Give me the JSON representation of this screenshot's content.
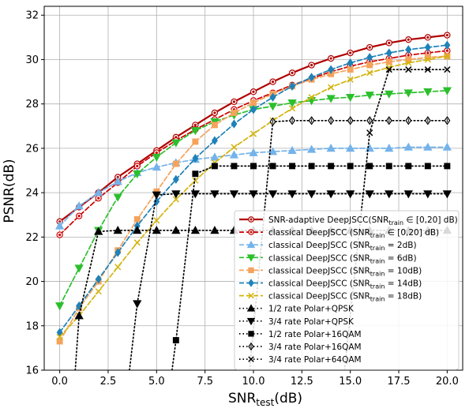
{
  "chart_data": {
    "type": "line",
    "xlabel": "SNR",
    "xlabel_sub": "test",
    "xlabel_unit": "(dB)",
    "ylabel": "PSNR(dB)",
    "xlim": [
      -0.8,
      20.8
    ],
    "ylim": [
      16,
      32.4
    ],
    "xticks": [
      0.0,
      2.5,
      5.0,
      7.5,
      10.0,
      12.5,
      15.0,
      17.5,
      20.0
    ],
    "xtick_labels": [
      "0.0",
      "2.5",
      "5.0",
      "7.5",
      "10.0",
      "12.5",
      "15.0",
      "17.5",
      "20.0"
    ],
    "yticks": [
      16,
      18,
      20,
      22,
      24,
      26,
      28,
      30,
      32
    ],
    "ytick_labels": [
      "16",
      "18",
      "20",
      "22",
      "24",
      "26",
      "28",
      "30",
      "32"
    ],
    "grid": true,
    "legend_position": "lower-right",
    "series": [
      {
        "name": "SNR-adaptive DeepJSCC(SNR",
        "sub": "train",
        "suffix": " ∈ [0,20] dB)",
        "color": "#b00000",
        "line": "solid",
        "marker": "circle",
        "markerFill": "white",
        "x": [
          0,
          1,
          2,
          3,
          4,
          5,
          6,
          7,
          8,
          9,
          10,
          11,
          12,
          13,
          14,
          15,
          16,
          17,
          18,
          19,
          20
        ],
        "y": [
          22.7,
          23.35,
          24.0,
          24.7,
          25.3,
          25.9,
          26.5,
          27.05,
          27.6,
          28.1,
          28.55,
          29.0,
          29.4,
          29.75,
          30.05,
          30.3,
          30.55,
          30.75,
          30.9,
          31.0,
          31.1
        ]
      },
      {
        "name": "classical DeepJSCC (SNR",
        "sub": "train",
        "suffix": " ∈ [0,20] dB)",
        "color": "#cc0000",
        "line": "dashed",
        "marker": "circle",
        "markerFill": "white",
        "x": [
          0,
          1,
          2,
          3,
          4,
          5,
          6,
          7,
          8,
          9,
          10,
          11,
          12,
          13,
          14,
          15,
          16,
          17,
          18,
          19,
          20
        ],
        "y": [
          22.1,
          22.95,
          23.75,
          24.45,
          25.2,
          25.8,
          26.35,
          26.85,
          27.3,
          27.75,
          28.15,
          28.5,
          28.85,
          29.15,
          29.45,
          29.7,
          29.9,
          30.05,
          30.2,
          30.3,
          30.4
        ]
      },
      {
        "name": "classical DeepJSCC (SNR",
        "sub": "train",
        "suffix": " = 2dB)",
        "color": "#74b3ea",
        "line": "dashed",
        "marker": "triangle-up",
        "markerFill": "color",
        "x": [
          0,
          1,
          2,
          3,
          4,
          5,
          6,
          7,
          8,
          9,
          10,
          11,
          12,
          13,
          14,
          15,
          16,
          17,
          18,
          19,
          20
        ],
        "y": [
          22.5,
          23.4,
          24.0,
          24.5,
          24.9,
          25.15,
          25.35,
          25.5,
          25.6,
          25.7,
          25.8,
          25.85,
          25.9,
          25.95,
          26.0,
          26.0,
          26.0,
          26.0,
          26.05,
          26.05,
          26.05
        ]
      },
      {
        "name": "classical DeepJSCC (SNR",
        "sub": "train",
        "suffix": " = 6dB)",
        "color": "#2cbf2c",
        "line": "dashed",
        "marker": "triangle-down",
        "markerFill": "color",
        "x": [
          0,
          1,
          2,
          3,
          4,
          5,
          6,
          7,
          8,
          9,
          10,
          11,
          12,
          13,
          14,
          15,
          16,
          17,
          18,
          19,
          20
        ],
        "y": [
          18.9,
          20.6,
          22.3,
          23.8,
          24.85,
          25.6,
          26.25,
          26.8,
          27.2,
          27.5,
          27.75,
          27.9,
          28.05,
          28.15,
          28.25,
          28.3,
          28.4,
          28.45,
          28.5,
          28.55,
          28.6
        ]
      },
      {
        "name": "classical DeepJSCC (SNR",
        "sub": "train",
        "suffix": " = 10dB)",
        "color": "#f5a35c",
        "line": "dashed",
        "marker": "square",
        "markerFill": "color",
        "x": [
          0,
          1,
          2,
          3,
          4,
          5,
          6,
          7,
          8,
          9,
          10,
          11,
          12,
          13,
          14,
          15,
          16,
          17,
          18,
          19,
          20
        ],
        "y": [
          17.3,
          18.8,
          20.0,
          21.4,
          22.8,
          24.05,
          25.3,
          26.3,
          27.05,
          27.6,
          28.05,
          28.45,
          28.8,
          29.1,
          29.35,
          29.55,
          29.75,
          29.9,
          30.0,
          30.1,
          30.15
        ]
      },
      {
        "name": "classical DeepJSCC (SNR",
        "sub": "train",
        "suffix": " = 14dB)",
        "color": "#1f82b8",
        "line": "dashed",
        "marker": "diamond",
        "markerFill": "color",
        "x": [
          0,
          1,
          2,
          3,
          4,
          5,
          6,
          7,
          8,
          9,
          10,
          11,
          12,
          13,
          14,
          15,
          16,
          17,
          18,
          19,
          20
        ],
        "y": [
          17.7,
          18.9,
          20.1,
          21.3,
          22.5,
          23.6,
          24.6,
          25.55,
          26.35,
          27.1,
          27.75,
          28.3,
          28.8,
          29.2,
          29.55,
          29.85,
          30.1,
          30.3,
          30.45,
          30.55,
          30.65
        ]
      },
      {
        "name": "classical DeepJSCC (SNR",
        "sub": "train",
        "suffix": " = 18dB)",
        "color": "#d3b40e",
        "line": "dashed",
        "marker": "x",
        "markerFill": "none",
        "x": [
          0,
          1,
          2,
          3,
          4,
          5,
          6,
          7,
          8,
          9,
          10,
          11,
          12,
          13,
          14,
          15,
          16,
          17,
          18,
          19,
          20
        ],
        "y": [
          17.5,
          18.45,
          19.55,
          20.65,
          21.75,
          22.75,
          23.7,
          24.55,
          25.35,
          26.05,
          26.65,
          27.25,
          27.8,
          28.3,
          28.75,
          29.1,
          29.4,
          29.65,
          29.85,
          30.0,
          30.15
        ]
      },
      {
        "name": "1/2 rate Polar+QPSK",
        "color": "#000000",
        "line": "dotted",
        "marker": "triangle-up",
        "markerFill": "black",
        "x": [
          0.8,
          1,
          2,
          3,
          4,
          5,
          6,
          7,
          8,
          9,
          10,
          11,
          12,
          13,
          14,
          15,
          16,
          17,
          18,
          19,
          20
        ],
        "y": [
          16,
          18.45,
          22.25,
          22.3,
          22.3,
          22.3,
          22.3,
          22.3,
          22.3,
          22.3,
          22.3,
          22.3,
          22.3,
          22.3,
          22.3,
          22.3,
          22.3,
          22.3,
          22.3,
          22.3,
          22.3
        ]
      },
      {
        "name": "3/4 rate Polar+QPSK",
        "color": "#000000",
        "line": "dotted",
        "marker": "triangle-down",
        "markerFill": "black",
        "x": [
          3.6,
          4,
          5,
          6,
          7,
          8,
          9,
          10,
          11,
          12,
          13,
          14,
          15,
          16,
          17,
          18,
          19,
          20
        ],
        "y": [
          16,
          19.0,
          23.9,
          23.95,
          23.95,
          23.95,
          23.95,
          23.95,
          23.95,
          23.95,
          23.95,
          23.95,
          23.95,
          23.95,
          23.95,
          23.95,
          23.95,
          23.95
        ]
      },
      {
        "name": "1/2 rate Polar+16QAM",
        "color": "#000000",
        "line": "dotted",
        "marker": "square",
        "markerFill": "black",
        "x": [
          5.8,
          6,
          7,
          8,
          9,
          10,
          11,
          12,
          13,
          14,
          15,
          16,
          17,
          18,
          19,
          20
        ],
        "y": [
          16,
          17.35,
          24.85,
          25.2,
          25.2,
          25.2,
          25.2,
          25.2,
          25.2,
          25.2,
          25.2,
          25.2,
          25.2,
          25.2,
          25.2,
          25.2
        ]
      },
      {
        "name": "3/4 rate Polar+16QAM",
        "color": "#000000",
        "line": "dotted",
        "marker": "diamond",
        "markerFill": "white",
        "x": [
          9.8,
          11,
          12,
          13,
          14,
          15,
          16,
          17,
          18,
          19,
          20
        ],
        "y": [
          16,
          27.2,
          27.25,
          27.25,
          27.25,
          27.25,
          27.25,
          27.25,
          27.25,
          27.25,
          27.25
        ]
      },
      {
        "name": "3/4 rate Polar+64QAM",
        "color": "#000000",
        "line": "dotted",
        "marker": "x",
        "markerFill": "none",
        "x": [
          14.7,
          16,
          17,
          18,
          19,
          20
        ],
        "y": [
          16,
          26.7,
          29.55,
          29.55,
          29.55,
          29.55
        ]
      }
    ]
  }
}
